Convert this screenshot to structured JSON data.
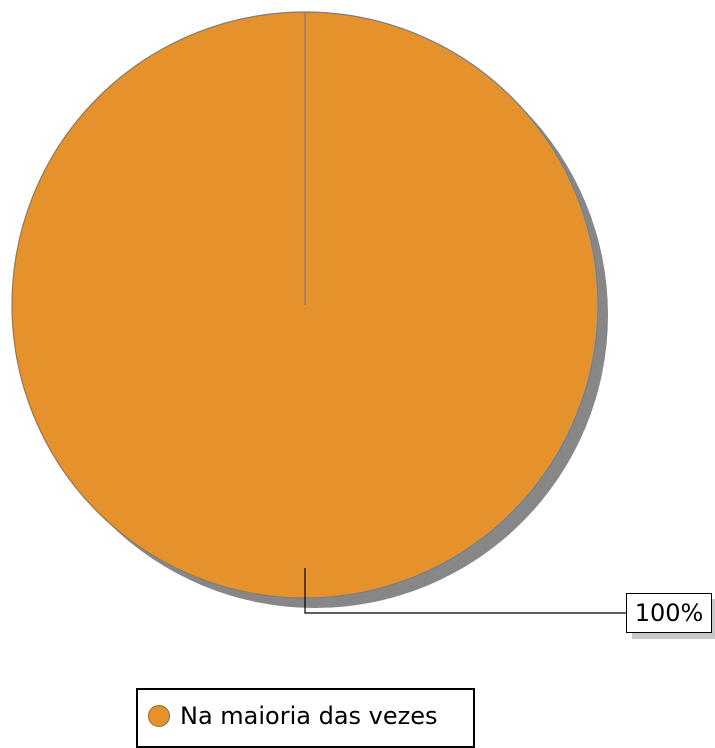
{
  "chart_data": {
    "type": "pie",
    "slices": [
      {
        "label": "Na maioria das vezes",
        "value": 100,
        "color": "#E5922C"
      }
    ],
    "data_labels": [
      "100%"
    ],
    "legend_position": "bottom",
    "shadow": true
  }
}
